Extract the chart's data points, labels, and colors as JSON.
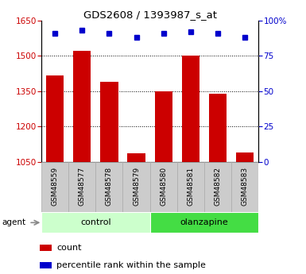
{
  "title": "GDS2608 / 1393987_s_at",
  "categories": [
    "GSM48559",
    "GSM48577",
    "GSM48578",
    "GSM48579",
    "GSM48580",
    "GSM48581",
    "GSM48582",
    "GSM48583"
  ],
  "bar_values": [
    1415,
    1520,
    1390,
    1085,
    1350,
    1500,
    1340,
    1090
  ],
  "percentile_values": [
    91,
    93,
    91,
    88,
    91,
    92,
    91,
    88
  ],
  "bar_color": "#cc0000",
  "dot_color": "#0000cc",
  "ylim_left": [
    1050,
    1650
  ],
  "ylim_right": [
    0,
    100
  ],
  "yticks_left": [
    1050,
    1200,
    1350,
    1500,
    1650
  ],
  "yticks_right": [
    0,
    25,
    50,
    75,
    100
  ],
  "ytick_labels_right": [
    "0",
    "25",
    "50",
    "75",
    "100%"
  ],
  "groups": [
    {
      "label": "control",
      "indices": [
        0,
        1,
        2,
        3
      ],
      "color": "#ccffcc"
    },
    {
      "label": "olanzapine",
      "indices": [
        4,
        5,
        6,
        7
      ],
      "color": "#44dd44"
    }
  ],
  "agent_label": "agent",
  "legend_count_label": "count",
  "legend_percentile_label": "percentile rank within the sample",
  "bar_width": 0.65,
  "grid_color": "#000000",
  "tick_label_color_left": "#cc0000",
  "tick_label_color_right": "#0000cc",
  "label_box_color": "#cccccc",
  "label_box_edge": "#aaaaaa"
}
